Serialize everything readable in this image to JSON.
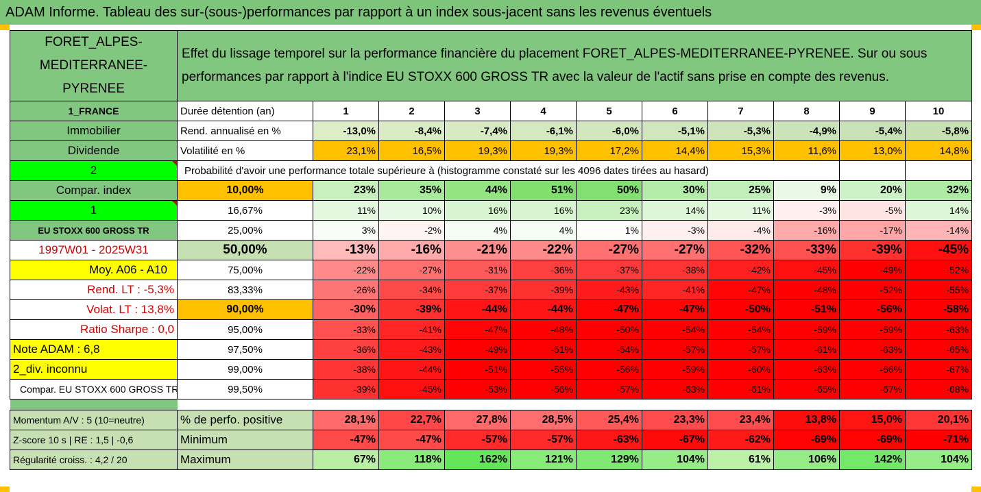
{
  "title": "ADAM Informe. Tableau des sur-(sous-)performances par rapport à un index sous-jacent sans les revenus éventuels",
  "fund_name": "FORET_ALPES-MEDITERRANEE-PYRENEE",
  "description": "Effet du lissage temporel sur la performance financière du placement FORET_ALPES-MEDITERRANEE-PYRENEE. Sur ou sous performances par rapport à l'indice EU STOXX 600 GROSS TR avec la valeur de l'actif sans prise en compte des revenus.",
  "left": {
    "country": "1_FRANCE",
    "category": "Immobilier",
    "dividende": "Dividende",
    "n2": "2",
    "compar_index": "Compar. index",
    "n1": "1",
    "index_name": "EU STOXX 600 GROSS TR",
    "period": "1997W01 - 2025W31",
    "moy": "Moy. A06 - A10",
    "rend_lt": "Rend. LT :   -5,3%",
    "volat_lt": "Volat. LT :   13,8%",
    "sharpe": "Ratio Sharpe :   0,0",
    "note": "Note ADAM : 6,8",
    "div": "2_div. inconnu",
    "compar_full": "Compar. EU STOXX 600 GROSS TR",
    "momentum": "Momentum A/V : 5 (10=neutre)",
    "zscore": "Z-score 10 s | RE : 1,5 | -0,6",
    "regularite": "Régularité croiss. : 4,2 / 20"
  },
  "row_labels": {
    "duree": "Durée détention (an)",
    "rend": "Rend. annualisé en %",
    "volat": "Volatilité en %",
    "proba": "Probabilité d'avoir une performance totale supérieure à (histogramme constaté sur les 4096 dates tirées au hasard)",
    "perf_pos": "% de perfo. positive",
    "minimum": "Minimum",
    "maximum": "Maximum"
  },
  "years": [
    "1",
    "2",
    "3",
    "4",
    "5",
    "6",
    "7",
    "8",
    "9",
    "10"
  ],
  "rend": [
    "-13,0%",
    "-8,4%",
    "-7,4%",
    "-6,1%",
    "-6,0%",
    "-5,1%",
    "-5,3%",
    "-4,9%",
    "-5,4%",
    "-5,8%"
  ],
  "volat": [
    "23,1%",
    "16,5%",
    "19,3%",
    "19,3%",
    "17,2%",
    "14,4%",
    "15,3%",
    "11,6%",
    "13,0%",
    "14,8%"
  ],
  "quantiles": [
    {
      "q": "10,00%",
      "vals": [
        "23%",
        "35%",
        "44%",
        "51%",
        "50%",
        "30%",
        "25%",
        "9%",
        "20%",
        "32%"
      ],
      "bold": true
    },
    {
      "q": "16,67%",
      "vals": [
        "11%",
        "10%",
        "16%",
        "16%",
        "23%",
        "14%",
        "11%",
        "-3%",
        "-5%",
        "14%"
      ]
    },
    {
      "q": "25,00%",
      "vals": [
        "3%",
        "-2%",
        "4%",
        "4%",
        "1%",
        "-3%",
        "-4%",
        "-16%",
        "-17%",
        "-14%"
      ]
    },
    {
      "q": "50,00%",
      "vals": [
        "-13%",
        "-16%",
        "-21%",
        "-22%",
        "-27%",
        "-27%",
        "-32%",
        "-33%",
        "-39%",
        "-45%"
      ],
      "big": true
    },
    {
      "q": "75,00%",
      "vals": [
        "-22%",
        "-27%",
        "-31%",
        "-36%",
        "-37%",
        "-38%",
        "-42%",
        "-45%",
        "-49%",
        "-52%"
      ]
    },
    {
      "q": "83,33%",
      "vals": [
        "-26%",
        "-34%",
        "-37%",
        "-39%",
        "-43%",
        "-41%",
        "-47%",
        "-48%",
        "-52%",
        "-55%"
      ]
    },
    {
      "q": "90,00%",
      "vals": [
        "-30%",
        "-39%",
        "-44%",
        "-44%",
        "-47%",
        "-47%",
        "-50%",
        "-51%",
        "-56%",
        "-58%"
      ],
      "bold": true
    },
    {
      "q": "95,00%",
      "vals": [
        "-33%",
        "-41%",
        "-47%",
        "-48%",
        "-50%",
        "-54%",
        "-54%",
        "-59%",
        "-59%",
        "-63%"
      ]
    },
    {
      "q": "97,50%",
      "vals": [
        "-36%",
        "-43%",
        "-49%",
        "-51%",
        "-54%",
        "-57%",
        "-57%",
        "-61%",
        "-63%",
        "-65%"
      ]
    },
    {
      "q": "99,00%",
      "vals": [
        "-38%",
        "-44%",
        "-51%",
        "-55%",
        "-56%",
        "-59%",
        "-60%",
        "-63%",
        "-66%",
        "-67%"
      ]
    },
    {
      "q": "99,50%",
      "vals": [
        "-39%",
        "-45%",
        "-53%",
        "-56%",
        "-57%",
        "-63%",
        "-61%",
        "-65%",
        "-67%",
        "-68%"
      ]
    }
  ],
  "perf_pos": [
    "28,1%",
    "22,7%",
    "27,8%",
    "28,5%",
    "25,4%",
    "23,3%",
    "23,4%",
    "13,8%",
    "15,0%",
    "20,1%"
  ],
  "minimum": [
    "-47%",
    "-47%",
    "-57%",
    "-57%",
    "-63%",
    "-67%",
    "-62%",
    "-69%",
    "-69%",
    "-71%"
  ],
  "maximum": [
    "67%",
    "118%",
    "162%",
    "121%",
    "129%",
    "104%",
    "61%",
    "106%",
    "142%",
    "104%"
  ]
}
